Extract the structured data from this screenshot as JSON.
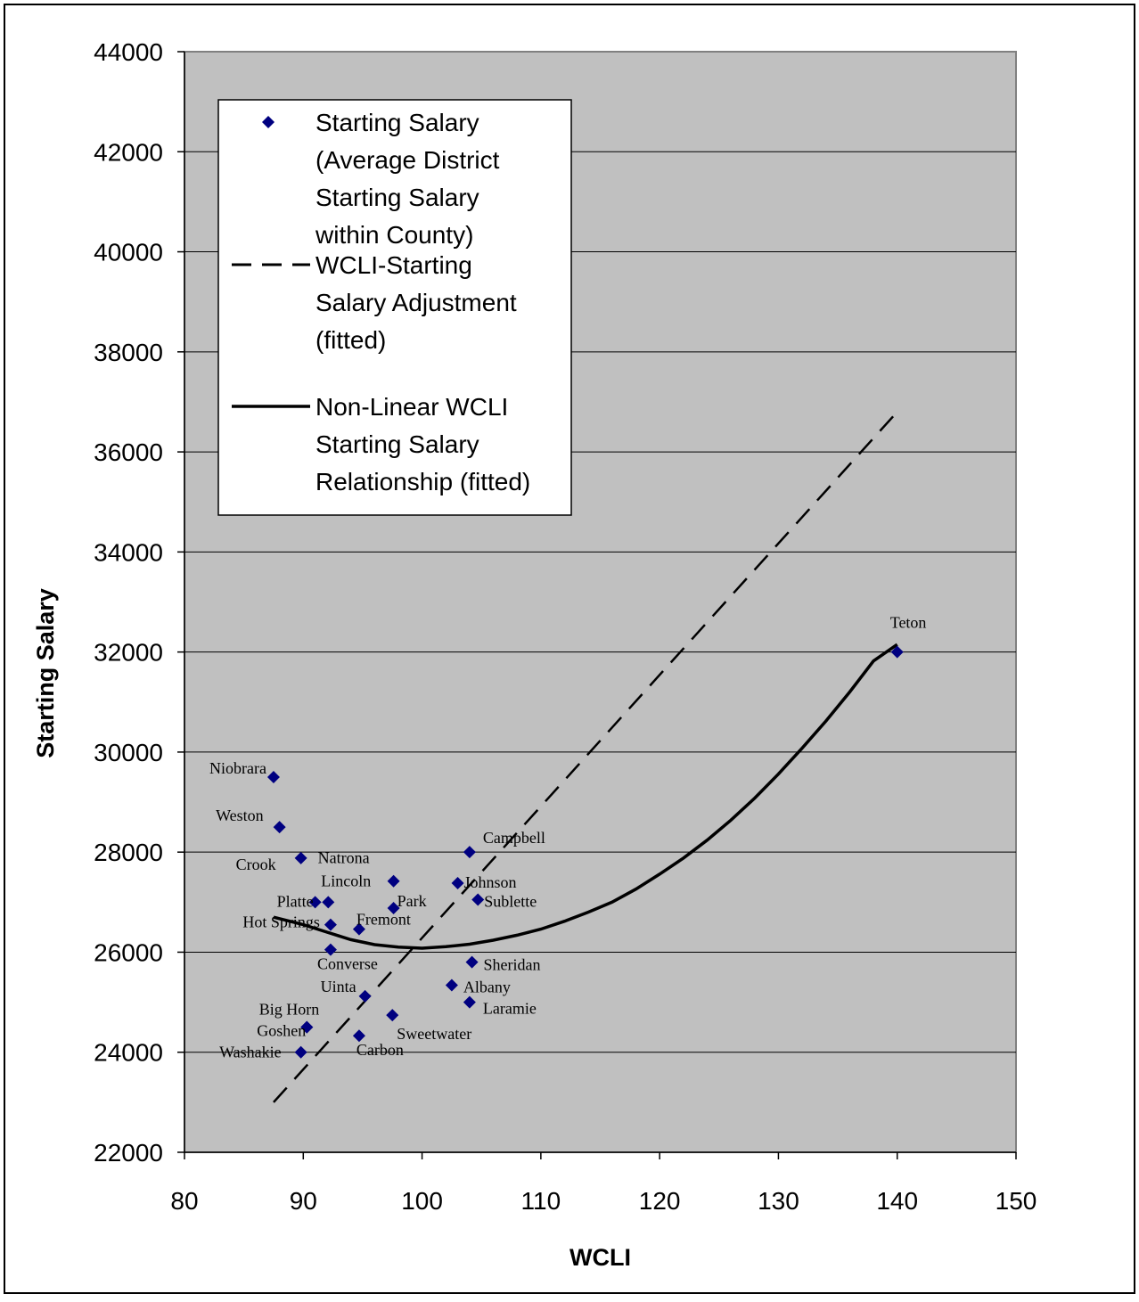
{
  "chart_data": {
    "type": "scatter",
    "xlabel": "WCLI",
    "ylabel": "Starting Salary",
    "xlim": [
      80,
      150
    ],
    "ylim": [
      22000,
      44000
    ],
    "xticks": [
      80,
      90,
      100,
      110,
      120,
      130,
      140,
      150
    ],
    "yticks": [
      22000,
      24000,
      26000,
      28000,
      30000,
      32000,
      34000,
      36000,
      38000,
      40000,
      42000,
      44000
    ],
    "grid": "horizontal",
    "legend_position": "top-left",
    "colors": {
      "plot_background": "#c0c0c0",
      "marker": "#000080",
      "line": "#000000"
    },
    "legend": [
      {
        "key": "scatter",
        "lines": [
          "Starting Salary",
          "(Average District",
          "Starting Salary",
          "within County)"
        ]
      },
      {
        "key": "linear",
        "lines": [
          "WCLI-Starting",
          "Salary Adjustment",
          "(fitted)"
        ]
      },
      {
        "key": "nonlinear",
        "lines": [
          "Non-Linear WCLI",
          "Starting Salary",
          "Relationship (fitted)"
        ]
      }
    ],
    "points": [
      {
        "name": "Niobrara",
        "x": 87.5,
        "y": 29500
      },
      {
        "name": "Weston",
        "x": 88.0,
        "y": 28500
      },
      {
        "name": "Crook",
        "x": 89.8,
        "y": 27880
      },
      {
        "name": "Platte",
        "x": 91.0,
        "y": 27000
      },
      {
        "name": "Lincoln",
        "x": 92.1,
        "y": 27000
      },
      {
        "name": "Hot Springs",
        "x": 92.3,
        "y": 26550
      },
      {
        "name": "Converse",
        "x": 92.3,
        "y": 26050
      },
      {
        "name": "Fremont",
        "x": 94.7,
        "y": 26460
      },
      {
        "name": "Natrona",
        "x": 97.6,
        "y": 27420
      },
      {
        "name": "Park",
        "x": 97.6,
        "y": 26880
      },
      {
        "name": "Uinta",
        "x": 95.2,
        "y": 25120
      },
      {
        "name": "Big Horn",
        "x": 90.3,
        "y": 24500
      },
      {
        "name": "Goshen",
        "x": 90.3,
        "y": 24500
      },
      {
        "name": "Washakie",
        "x": 89.8,
        "y": 24000
      },
      {
        "name": "Carbon",
        "x": 94.7,
        "y": 24330
      },
      {
        "name": "Sweetwater",
        "x": 97.5,
        "y": 24740
      },
      {
        "name": "Campbell",
        "x": 104.0,
        "y": 28000
      },
      {
        "name": "Johnson",
        "x": 103.0,
        "y": 27380
      },
      {
        "name": "Sublette",
        "x": 104.7,
        "y": 27050
      },
      {
        "name": "Sheridan",
        "x": 104.2,
        "y": 25800
      },
      {
        "name": "Albany",
        "x": 102.5,
        "y": 25340
      },
      {
        "name": "Laramie",
        "x": 104.0,
        "y": 25000
      },
      {
        "name": "Teton",
        "x": 140.0,
        "y": 32000
      }
    ],
    "linear_fit": [
      [
        87.5,
        23000
      ],
      [
        140.0,
        36800
      ]
    ],
    "nonlinear_fit": [
      [
        87.5,
        26700
      ],
      [
        90,
        26550
      ],
      [
        92,
        26400
      ],
      [
        94,
        26250
      ],
      [
        96,
        26150
      ],
      [
        98,
        26100
      ],
      [
        100,
        26080
      ],
      [
        102,
        26110
      ],
      [
        104,
        26160
      ],
      [
        106,
        26240
      ],
      [
        108,
        26340
      ],
      [
        110,
        26460
      ],
      [
        112,
        26620
      ],
      [
        114,
        26800
      ],
      [
        116,
        27000
      ],
      [
        118,
        27260
      ],
      [
        120,
        27560
      ],
      [
        122,
        27880
      ],
      [
        124,
        28240
      ],
      [
        126,
        28640
      ],
      [
        128,
        29080
      ],
      [
        130,
        29560
      ],
      [
        132,
        30080
      ],
      [
        134,
        30620
      ],
      [
        136,
        31200
      ],
      [
        138,
        31820
      ],
      [
        140,
        32150
      ]
    ]
  }
}
